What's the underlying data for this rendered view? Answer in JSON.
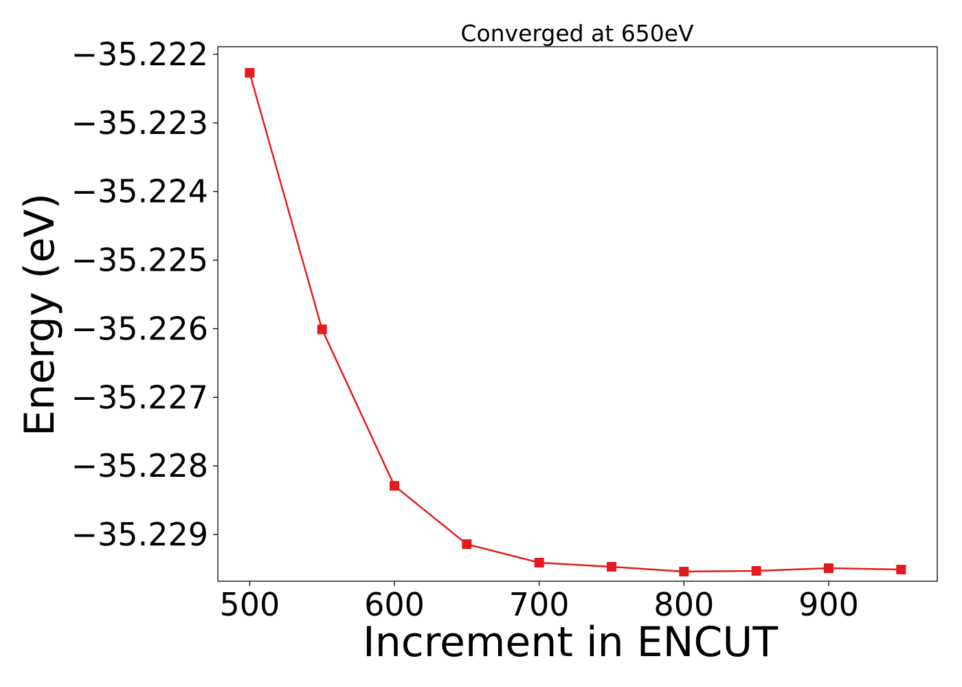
{
  "chart_data": {
    "type": "line",
    "title": "Converged at 650eV",
    "xlabel": "Increment in ENCUT",
    "ylabel": "Energy (eV)",
    "x": [
      500,
      550,
      600,
      650,
      700,
      750,
      800,
      850,
      900,
      950
    ],
    "series": [
      {
        "color": "#e41a1c",
        "marker": "square",
        "values": [
          -35.22227,
          -35.22601,
          -35.22829,
          -35.22914,
          -35.22941,
          -35.22947,
          -35.22954,
          -35.22953,
          -35.22949,
          -35.22951
        ]
      }
    ],
    "xlim": [
      478,
      975
    ],
    "ylim": [
      -35.22968,
      -35.22189
    ],
    "xticks": [
      500,
      600,
      700,
      800,
      900
    ],
    "xtick_labels": [
      "500",
      "600",
      "700",
      "800",
      "900"
    ],
    "yticks": [
      -35.222,
      -35.223,
      -35.224,
      -35.225,
      -35.226,
      -35.227,
      -35.228,
      -35.229
    ],
    "ytick_labels": [
      "−35.222",
      "−35.223",
      "−35.224",
      "−35.225",
      "−35.226",
      "−35.227",
      "−35.228",
      "−35.229"
    ],
    "grid": false,
    "legend": "none"
  }
}
